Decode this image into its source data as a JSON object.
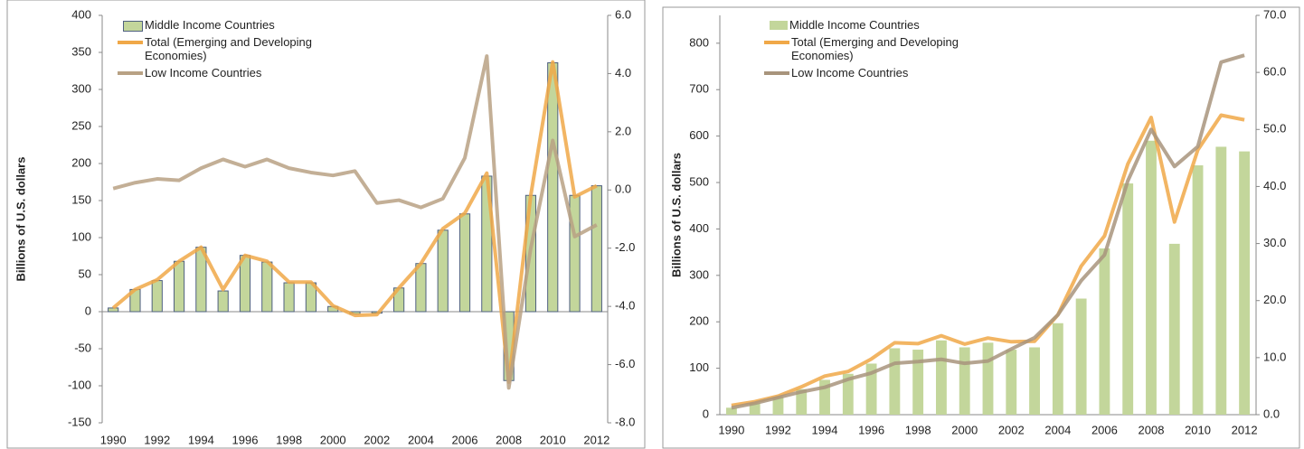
{
  "chart_data": [
    {
      "type": "bar",
      "ylabel": "Billions of U.S. dollars",
      "legend": "upper left",
      "categories": [
        "1990",
        null,
        "1992",
        null,
        "1994",
        null,
        "1996",
        null,
        "1998",
        null,
        "2000",
        null,
        "2002",
        null,
        "2004",
        null,
        "2006",
        null,
        "2008",
        null,
        "2010",
        null,
        "2012"
      ],
      "ylim": [
        -150,
        400
      ],
      "yticks": [
        -150,
        -100,
        -50,
        0,
        50,
        100,
        150,
        200,
        250,
        300,
        350,
        400
      ],
      "y2lim": [
        -8,
        6
      ],
      "y2ticks": [
        {
          "value": -8,
          "label": "-8.0"
        },
        {
          "value": -6,
          "label": "-6.0"
        },
        {
          "value": -4,
          "label": "-4.0"
        },
        {
          "value": -2,
          "label": "-2.0"
        },
        {
          "value": 0,
          "label": "0.0"
        },
        {
          "value": 2,
          "label": "2.0"
        },
        {
          "value": 4,
          "label": "4.0"
        },
        {
          "value": 6,
          "label": "6.0"
        }
      ],
      "series": [
        {
          "name": "Middle Income Countries",
          "type": "bar",
          "color": "#c3d69b",
          "values": [
            5,
            30,
            42,
            68,
            87,
            28,
            76,
            67,
            39,
            39,
            7,
            -3,
            -2,
            32,
            65,
            110,
            132,
            183,
            -93,
            157,
            336,
            157,
            170
          ]
        },
        {
          "name": "Total (Emerging and Developing Economies)",
          "type": "line",
          "color": "#f0a848",
          "values": [
            5,
            30,
            43,
            68,
            87,
            30,
            76,
            68,
            40,
            40,
            8,
            -5,
            -4,
            32,
            65,
            112,
            133,
            187,
            -95,
            157,
            337,
            155,
            170
          ]
        },
        {
          "name": "Low Income Countries",
          "type": "line",
          "axis": "y2",
          "color": "#b8a184",
          "values": [
            0.05,
            0.25,
            0.38,
            0.33,
            0.75,
            1.05,
            0.8,
            1.05,
            0.75,
            0.6,
            0.5,
            0.65,
            -0.45,
            -0.35,
            -0.6,
            -0.3,
            1.1,
            4.6,
            -6.8,
            -2.0,
            1.7,
            -1.6,
            -1.2
          ]
        }
      ]
    },
    {
      "type": "bar",
      "ylabel": "Billions of U.S. dollars",
      "legend": "upper left",
      "categories": [
        "1990",
        null,
        "1992",
        null,
        "1994",
        null,
        "1996",
        null,
        "1998",
        null,
        "2000",
        null,
        "2002",
        null,
        "2004",
        null,
        "2006",
        null,
        "2008",
        null,
        "2010",
        null,
        "2012"
      ],
      "ylim": [
        0,
        860
      ],
      "yticks": [
        0,
        100,
        200,
        300,
        400,
        500,
        600,
        700,
        800
      ],
      "y2lim": [
        0,
        70
      ],
      "y2ticks": [
        {
          "value": 0,
          "label": "0.0"
        },
        {
          "value": 10,
          "label": "10.0"
        },
        {
          "value": 20,
          "label": "20.0"
        },
        {
          "value": 30,
          "label": "30.0"
        },
        {
          "value": 40,
          "label": "40.0"
        },
        {
          "value": 50,
          "label": "50.0"
        },
        {
          "value": 60,
          "label": "60.0"
        },
        {
          "value": 70,
          "label": "70.0"
        }
      ],
      "series": [
        {
          "name": "Middle Income Countries",
          "type": "bar",
          "color": "#c3d69b",
          "values": [
            15,
            25,
            38,
            55,
            75,
            88,
            110,
            143,
            140,
            160,
            145,
            155,
            140,
            145,
            197,
            250,
            358,
            498,
            590,
            368,
            537,
            577,
            567
          ]
        },
        {
          "name": "Total (Emerging and Developing Economies)",
          "type": "line",
          "color": "#f0a848",
          "values": [
            20,
            28,
            40,
            60,
            83,
            93,
            120,
            155,
            153,
            170,
            152,
            165,
            157,
            158,
            215,
            320,
            385,
            540,
            640,
            415,
            570,
            645,
            635
          ]
        },
        {
          "name": "Low Income Countries",
          "type": "line",
          "axis": "y2",
          "color": "#a8947c",
          "values": [
            1.2,
            2,
            3,
            4,
            4.8,
            6.2,
            7.3,
            9,
            9.3,
            9.7,
            9,
            9.4,
            11.5,
            13.5,
            17.5,
            23.5,
            28,
            41,
            50,
            43.5,
            47,
            61.8,
            63
          ]
        }
      ]
    }
  ]
}
